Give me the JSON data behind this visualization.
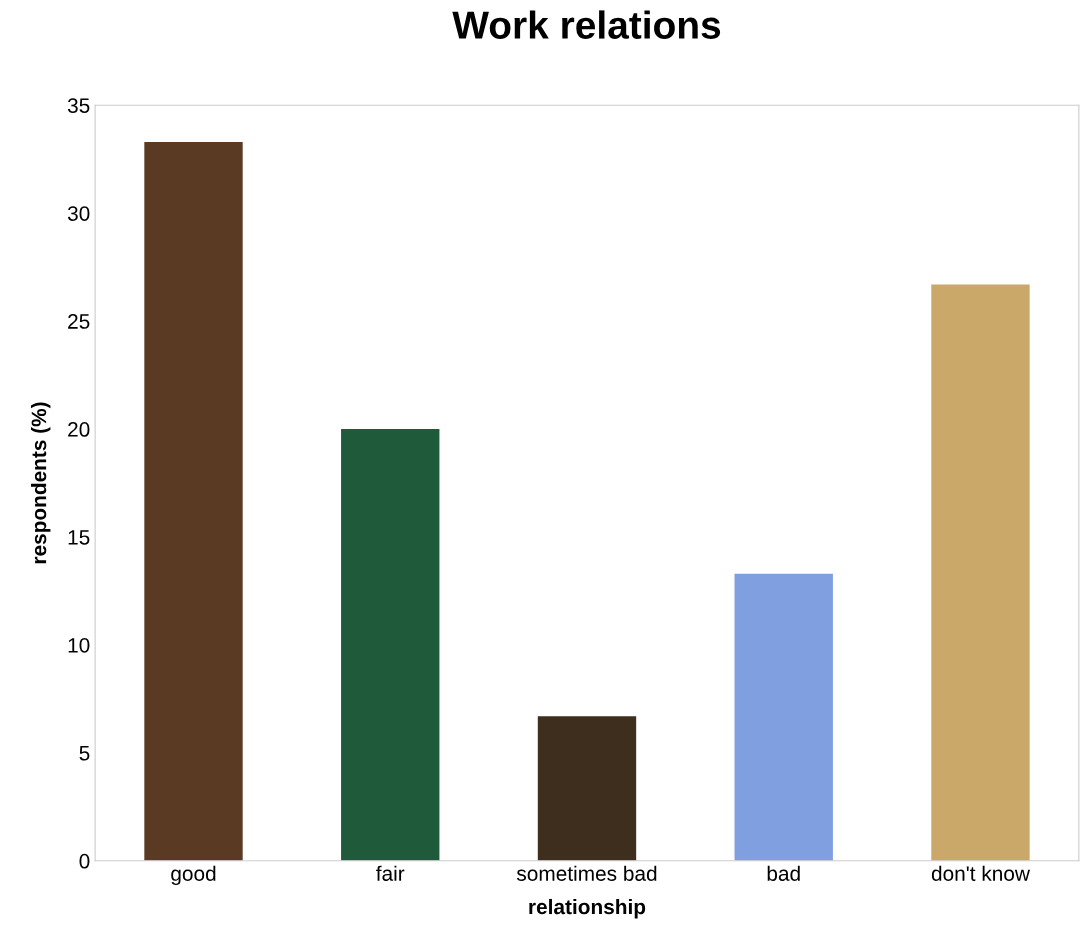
{
  "chart_data": {
    "type": "bar",
    "title": "Work relations",
    "xlabel": "relationship",
    "ylabel": "respondents (%)",
    "categories": [
      "good",
      "fair",
      "sometimes bad",
      "bad",
      "don't know"
    ],
    "values": [
      33.3,
      20,
      6.7,
      13.3,
      26.7
    ],
    "colors": [
      "#5a3a22",
      "#1f5a3a",
      "#3d2e1e",
      "#7f9fe0",
      "#c9a86a"
    ],
    "ylim": [
      0,
      35
    ],
    "yticks": [
      0,
      5,
      10,
      15,
      20,
      25,
      30,
      35
    ],
    "grid": false
  }
}
